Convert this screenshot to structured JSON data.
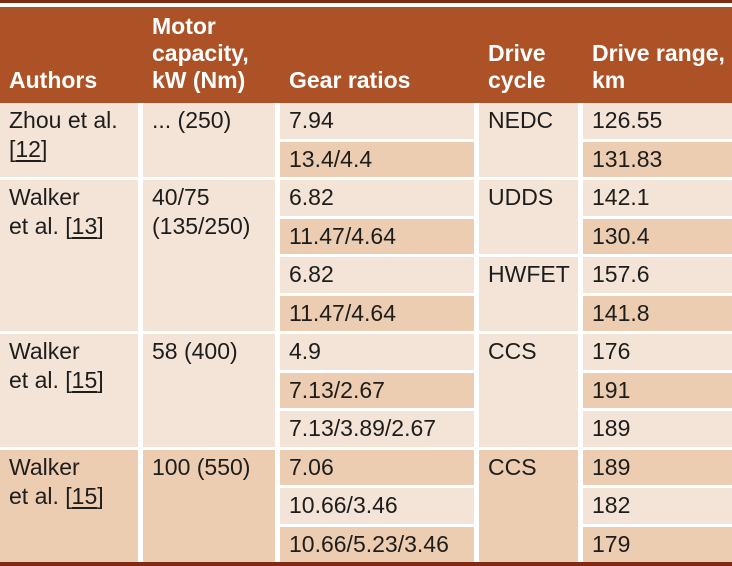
{
  "colors": {
    "header-bg": "#ad5226",
    "border-dark": "#7e2c12",
    "row-light": "#f4e4d7",
    "row-dark": "#eccdb2",
    "divider": "#ffffff",
    "text": "#1d1d1b",
    "header-text": "#ffffff"
  },
  "header": {
    "authors": "Authors",
    "motor_capacity": "Motor capacity, kW (Nm)",
    "gear_ratios": "Gear ratios",
    "drive_cycle": "Drive cycle",
    "drive_range": "Drive range, km"
  },
  "groups": [
    {
      "authors": {
        "line1": "Zhou et al.",
        "ref_pre": "[",
        "ref": "12",
        "ref_post": "]"
      },
      "motor_capacity": "... (250)",
      "cycles": [
        {
          "label": "NEDC"
        }
      ],
      "rows": [
        {
          "gear_ratio": "7.94",
          "drive_range": "126.55"
        },
        {
          "gear_ratio": "13.4/4.4",
          "drive_range": "131.83"
        }
      ]
    },
    {
      "authors": {
        "line1": "Walker",
        "ref_pre": "et al. [",
        "ref": "13",
        "ref_post": "]"
      },
      "motor_capacity": "40/75 (135/250)",
      "cycles": [
        {
          "label": "UDDS"
        },
        {
          "label": "HWFET"
        }
      ],
      "rows": [
        {
          "gear_ratio": "6.82",
          "drive_range": "142.1"
        },
        {
          "gear_ratio": "11.47/4.64",
          "drive_range": "130.4"
        },
        {
          "gear_ratio": "6.82",
          "drive_range": "157.6"
        },
        {
          "gear_ratio": "11.47/4.64",
          "drive_range": "141.8"
        }
      ]
    },
    {
      "authors": {
        "line1": "Walker",
        "ref_pre": "et al. [",
        "ref": "15",
        "ref_post": "]"
      },
      "motor_capacity": "58 (400)",
      "cycles": [
        {
          "label": "CCS"
        }
      ],
      "rows": [
        {
          "gear_ratio": "4.9",
          "drive_range": "176"
        },
        {
          "gear_ratio": "7.13/2.67",
          "drive_range": "191"
        },
        {
          "gear_ratio": "7.13/3.89/2.67",
          "drive_range": "189"
        }
      ]
    },
    {
      "authors": {
        "line1": "Walker",
        "ref_pre": "et al. [",
        "ref": "15",
        "ref_post": "]"
      },
      "motor_capacity": "100 (550)",
      "cycles": [
        {
          "label": "CCS"
        }
      ],
      "rows": [
        {
          "gear_ratio": "7.06",
          "drive_range": "189"
        },
        {
          "gear_ratio": "10.66/3.46",
          "drive_range": "182"
        },
        {
          "gear_ratio": "10.66/5.23/3.46",
          "drive_range": "179"
        }
      ]
    }
  ]
}
